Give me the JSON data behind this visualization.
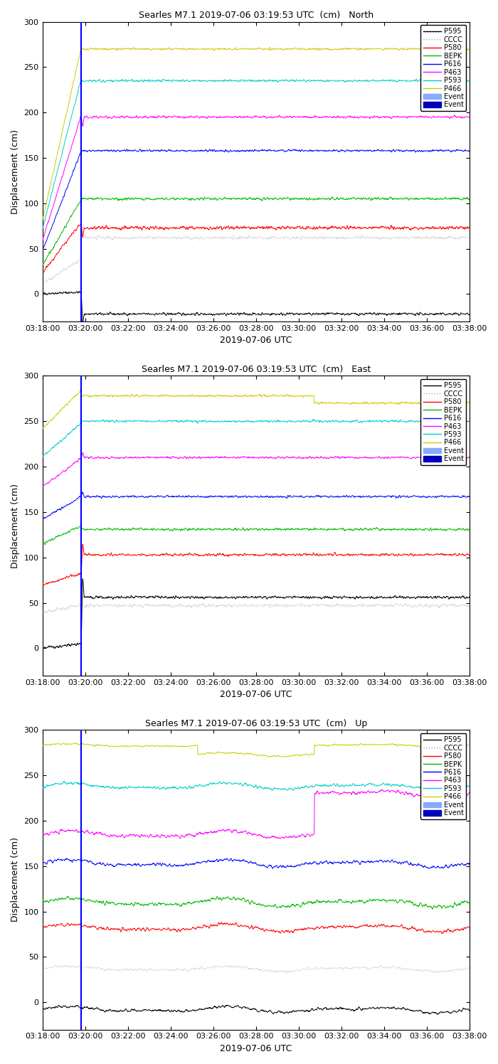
{
  "title_base": "Searles M7.1 2019-07-06 03:19:53 UTC  (cm)",
  "components": [
    "North",
    "East",
    "Up"
  ],
  "xlabel": "2019-07-06 UTC",
  "ylabel": "Displacement (cm)",
  "ylim": [
    -30,
    300
  ],
  "yticks": [
    0,
    50,
    100,
    150,
    200,
    250,
    300
  ],
  "xtick_labels": [
    "03:18:00",
    "03:20:00",
    "03:22:00",
    "03:24:00",
    "03:26:00",
    "03:28:00",
    "03:30:00",
    "03:32:00",
    "03:34:00",
    "03:36:00",
    "03:38:00"
  ],
  "stations": [
    "P595",
    "CCCC",
    "P580",
    "BEPK",
    "P616",
    "P463",
    "P593",
    "P466"
  ],
  "colors": {
    "P595": "#000000",
    "CCCC": "#aaaaaa",
    "P580": "#ff0000",
    "BEPK": "#00bb00",
    "P616": "#0000ff",
    "P463": "#ff00ff",
    "P593": "#00cccc",
    "P466": "#cccc00"
  },
  "linestyles": {
    "P595": "-",
    "CCCC": ":",
    "P580": "-",
    "BEPK": "-",
    "P616": "-",
    "P463": "-",
    "P593": "-",
    "P466": "-"
  },
  "north": {
    "P595": {
      "pre": 2,
      "post": -22,
      "noise": 1.2,
      "spike_down": true
    },
    "CCCC": {
      "pre": 38,
      "post": 62,
      "noise": 1.5,
      "spike_down": false
    },
    "P580": {
      "pre": 78,
      "post": 73,
      "noise": 1.5,
      "spike_down": true
    },
    "BEPK": {
      "pre": 104,
      "post": 105,
      "noise": 1.2,
      "spike_down": false
    },
    "P616": {
      "pre": 157,
      "post": 158,
      "noise": 1.0,
      "spike_down": false
    },
    "P463": {
      "pre": 196,
      "post": 195,
      "noise": 1.0,
      "spike_down": true
    },
    "P593": {
      "pre": 236,
      "post": 235,
      "noise": 1.0,
      "spike_down": false
    },
    "P466": {
      "pre": 270,
      "post": 270,
      "noise": 1.0,
      "spike_down": false
    }
  },
  "east": {
    "P595": {
      "pre": 5,
      "post": 56,
      "noise": 1.2,
      "spike_up": true
    },
    "CCCC": {
      "pre": 47,
      "post": 47,
      "noise": 1.5,
      "spike_up": false
    },
    "P580": {
      "pre": 82,
      "post": 103,
      "noise": 1.2,
      "spike_up": true
    },
    "BEPK": {
      "pre": 135,
      "post": 131,
      "noise": 1.2,
      "spike_up": false
    },
    "P616": {
      "pre": 167,
      "post": 167,
      "noise": 1.0,
      "spike_up": true
    },
    "P463": {
      "pre": 209,
      "post": 210,
      "noise": 1.0,
      "spike_up": true
    },
    "P593": {
      "pre": 248,
      "post": 250,
      "noise": 1.0,
      "spike_up": false
    },
    "P466": {
      "pre": 284,
      "post": 278,
      "noise": 1.0,
      "spike_up": false,
      "step_down": true
    }
  },
  "up": {
    "P595": {
      "level": -8,
      "noise": 3.5
    },
    "CCCC": {
      "level": 37,
      "noise": 3.0
    },
    "P580": {
      "level": 82,
      "noise": 4.0
    },
    "BEPK": {
      "level": 110,
      "noise": 4.5
    },
    "P616": {
      "level": 153,
      "noise": 4.0
    },
    "P463": {
      "level": 185,
      "noise": 4.0,
      "step_up_t": 14.0,
      "step_up_amt": 45
    },
    "P593": {
      "level": 238,
      "noise": 3.5
    },
    "P466": {
      "level": 283,
      "noise": 2.0,
      "step_down_t": 8.0,
      "step_down_amt": 10,
      "step_up2_t": 14.0,
      "step_up2_amt": 10
    }
  },
  "figsize": [
    7.0,
    14.96
  ],
  "dpi": 100,
  "event_t_min": 2.0,
  "total_t_min": 22.0
}
